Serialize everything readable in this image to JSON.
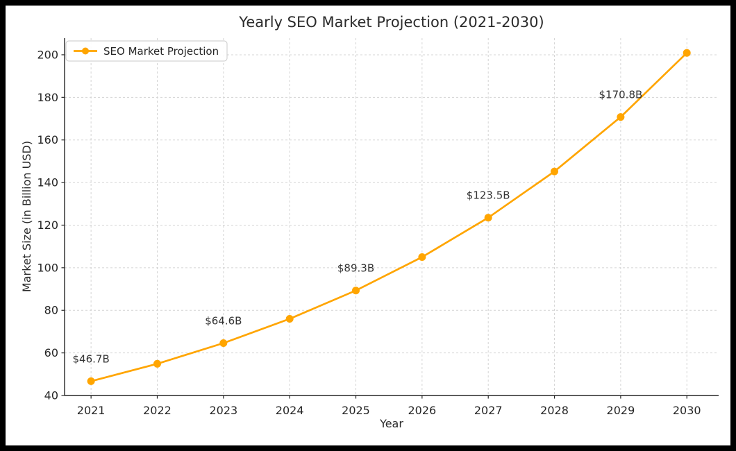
{
  "figure": {
    "background": "#ffffff",
    "frame_color": "#000000"
  },
  "chart_data": {
    "type": "line",
    "title": "Yearly SEO Market Projection (2021-2030)",
    "xlabel": "Year",
    "ylabel": "Market Size (in Billion USD)",
    "x": [
      2021,
      2022,
      2023,
      2024,
      2025,
      2026,
      2027,
      2028,
      2029,
      2030
    ],
    "series": [
      {
        "name": "SEO Market Projection",
        "color": "#FFA500",
        "marker": "circle",
        "values": [
          46.7,
          54.9,
          64.6,
          76.0,
          89.3,
          105.0,
          123.5,
          145.2,
          170.8,
          200.9
        ]
      }
    ],
    "annotations": [
      {
        "x": 2021,
        "label": "$46.7B"
      },
      {
        "x": 2023,
        "label": "$64.6B"
      },
      {
        "x": 2025,
        "label": "$89.3B"
      },
      {
        "x": 2027,
        "label": "$123.5B"
      },
      {
        "x": 2029,
        "label": "$170.8B"
      }
    ],
    "x_ticks": [
      2021,
      2022,
      2023,
      2024,
      2025,
      2026,
      2027,
      2028,
      2029,
      2030
    ],
    "y_ticks": [
      40,
      60,
      80,
      100,
      120,
      140,
      160,
      180,
      200
    ],
    "xlim": [
      2020.6,
      2030.48
    ],
    "ylim": [
      40,
      207.8
    ],
    "grid": {
      "visible": true,
      "style": "dashed",
      "color": "#d4d4d4"
    },
    "legend": {
      "position": "upper-left",
      "entries": [
        "SEO Market Projection"
      ]
    }
  }
}
